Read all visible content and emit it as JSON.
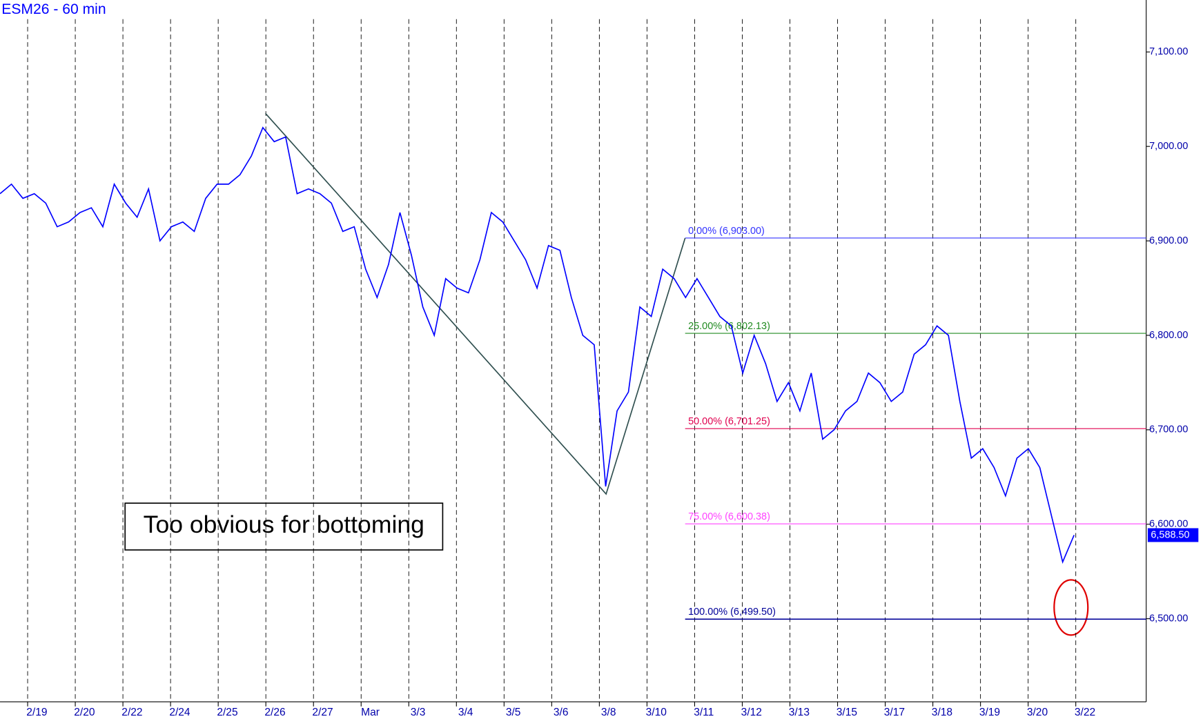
{
  "chart_data": {
    "type": "line",
    "title": "ESM26 - 60 min",
    "annotation": "Too obvious for bottoming",
    "date_labels": [
      "2/19",
      "2/20",
      "2/22",
      "2/24",
      "2/25",
      "2/26",
      "2/27",
      "Mar",
      "3/3",
      "3/4",
      "3/5",
      "3/6",
      "3/8",
      "3/10",
      "3/11",
      "3/12",
      "3/13",
      "3/15",
      "3/17",
      "3/18",
      "3/19",
      "3/20",
      "3/22"
    ],
    "ylim": [
      6412,
      7155
    ],
    "yticks": [
      {
        "value": 6500,
        "label": "6,500.00"
      },
      {
        "value": 6600,
        "label": "6,600.00"
      },
      {
        "value": 6700,
        "label": "6,700.00"
      },
      {
        "value": 6800,
        "label": "6,800.00"
      },
      {
        "value": 6900,
        "label": "6,900.00"
      },
      {
        "value": 7000,
        "label": "7,000.00"
      },
      {
        "value": 7100,
        "label": "7,100.00"
      }
    ],
    "series": [
      {
        "name": "ESM26",
        "color": "#0000ff",
        "values": [
          6950,
          6960,
          6945,
          6950,
          6940,
          6915,
          6920,
          6930,
          6935,
          6915,
          6960,
          6940,
          6925,
          6955,
          6900,
          6915,
          6920,
          6910,
          6945,
          6960,
          6960,
          6970,
          6990,
          7020,
          7005,
          7010,
          6950,
          6955,
          6950,
          6940,
          6910,
          6915,
          6870,
          6840,
          6875,
          6930,
          6885,
          6830,
          6800,
          6860,
          6850,
          6845,
          6880,
          6930,
          6920,
          6900,
          6880,
          6850,
          6895,
          6890,
          6840,
          6800,
          6790,
          6640,
          6720,
          6740,
          6830,
          6820,
          6870,
          6860,
          6840,
          6860,
          6840,
          6820,
          6810,
          6760,
          6800,
          6770,
          6730,
          6750,
          6720,
          6760,
          6690,
          6700,
          6720,
          6730,
          6760,
          6750,
          6730,
          6740,
          6780,
          6790,
          6810,
          6800,
          6730,
          6670,
          6680,
          6660,
          6630,
          6670,
          6680,
          6660,
          6610,
          6560,
          6588.5
        ]
      }
    ],
    "swing_prices": [
      7035,
      6632,
      6903
    ],
    "swing_color": "#2f4f4f",
    "fib_levels": [
      {
        "label": "0.00% (6,903.00)",
        "value": 6903,
        "color": "#3333ff"
      },
      {
        "label": "25.00% (6,802.13)",
        "value": 6802.13,
        "color": "#228b22"
      },
      {
        "label": "50.00% (6,701.25)",
        "value": 6701.25,
        "color": "#e0004f"
      },
      {
        "label": "75.00% (6,600.38)",
        "value": 6600.38,
        "color": "#ff44ff"
      },
      {
        "label": "100.00% (6,499.50)",
        "value": 6499.5,
        "color": "#000099"
      }
    ],
    "last": {
      "value": 6588.5,
      "label": "6,588.50"
    }
  }
}
